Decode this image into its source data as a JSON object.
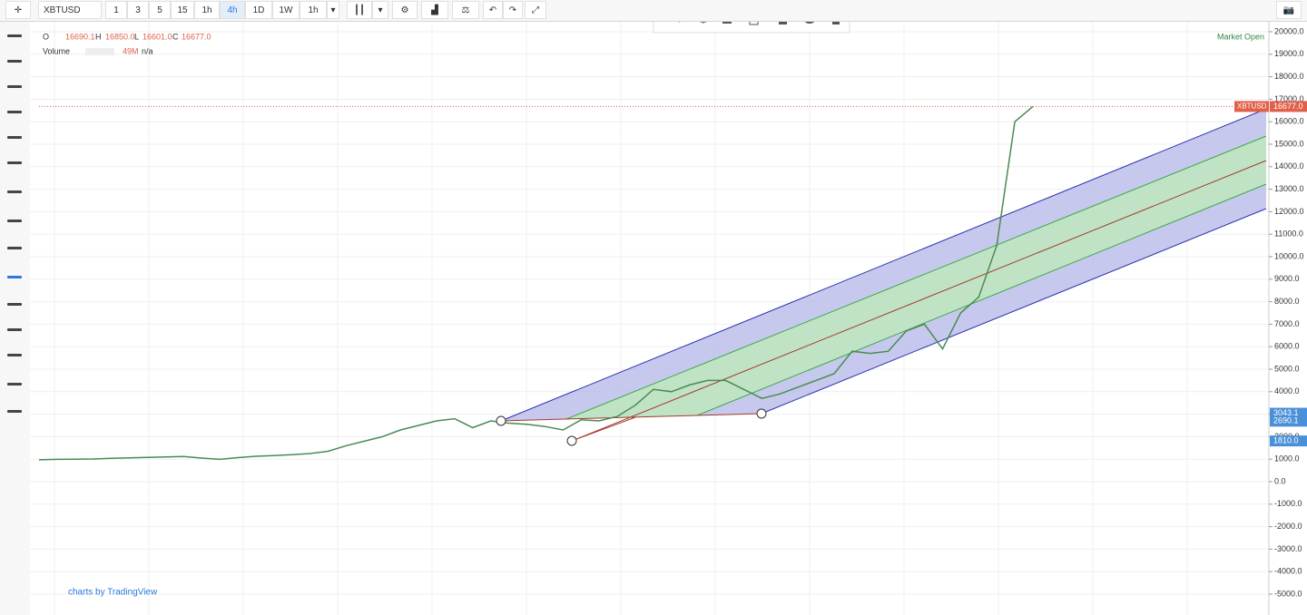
{
  "toolbar": {
    "symbol": "XBTUSD",
    "intervals": [
      "1",
      "3",
      "5",
      "15",
      "1h",
      "4h",
      "1D",
      "1W",
      "1h"
    ]
  },
  "legend": {
    "o_label": "O",
    "o": "16690.1",
    "h_label": "H",
    "h": "16850.0",
    "l_label": "L",
    "l": "16601.0",
    "c_label": "C",
    "c": "16677.0",
    "volume_label": "Volume",
    "volume": "49M",
    "volume_extra": "n/a"
  },
  "status": "Market Open",
  "branding": "charts by TradingView",
  "chart_data": {
    "type": "line",
    "color": "#4b8a52",
    "values": [
      970,
      990,
      1000,
      1010,
      1040,
      1060,
      1080,
      1100,
      1120,
      1050,
      990,
      1070,
      1130,
      1160,
      1200,
      1250,
      1350,
      1600,
      1800,
      2000,
      2300,
      2500,
      2700,
      2800,
      2400,
      2700,
      2600,
      2550,
      2450,
      2300,
      2750,
      2700,
      2900,
      3400,
      4100,
      4000,
      4300,
      4500,
      4500,
      4100,
      3700,
      3900,
      4200,
      4500,
      4800,
      5800,
      5700,
      5800,
      6700,
      7000,
      5900,
      7500,
      8200,
      10500,
      16000,
      16677
    ],
    "ylim": [
      -5000,
      20000
    ],
    "yticks": [
      {
        "value": 20000,
        "label": "20000.0"
      },
      {
        "value": 19000,
        "label": "19000.0"
      },
      {
        "value": 18000,
        "label": "18000.0"
      },
      {
        "value": 17000,
        "label": "17000.0"
      },
      {
        "value": 16000,
        "label": "16000.0"
      },
      {
        "value": 15000,
        "label": "15000.0"
      },
      {
        "value": 14000,
        "label": "14000.0"
      },
      {
        "value": 13000,
        "label": "13000.0"
      },
      {
        "value": 12000,
        "label": "12000.0"
      },
      {
        "value": 11000,
        "label": "11000.0"
      },
      {
        "value": 10000,
        "label": "10000.0"
      },
      {
        "value": 9000,
        "label": "9000.0"
      },
      {
        "value": 8000,
        "label": "8000.0"
      },
      {
        "value": 7000,
        "label": "7000.0"
      },
      {
        "value": 6000,
        "label": "6000.0"
      },
      {
        "value": 5000,
        "label": "5000.0"
      },
      {
        "value": 4000,
        "label": "4000.0"
      },
      {
        "value": 3000,
        "label": "3000.0"
      },
      {
        "value": 2000,
        "label": "2000.0"
      },
      {
        "value": 1000,
        "label": "1000.0"
      },
      {
        "value": 0,
        "label": "0.0"
      },
      {
        "value": -1000,
        "label": "-1000.0"
      },
      {
        "value": -2000,
        "label": "-2000.0"
      },
      {
        "value": -3000,
        "label": "-3000.0"
      },
      {
        "value": -4000,
        "label": "-4000.0"
      },
      {
        "value": -5000,
        "label": "-5000.0"
      }
    ],
    "grid": true,
    "last_price": {
      "value": 16677,
      "label": "16677.0"
    },
    "last_price_symbol": "XBTUSD",
    "price_labels": [
      3043.1,
      2690.1,
      {
        "value": 1810,
        "label": "1810.0"
      }
    ]
  }
}
